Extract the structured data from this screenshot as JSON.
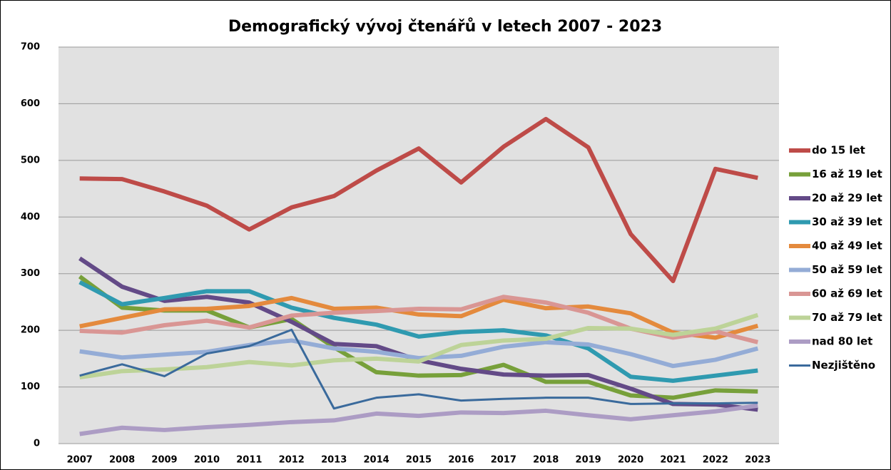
{
  "chart_data": {
    "type": "line",
    "title": "Demografický vývoj čtenářů v letech 2007 - 2023",
    "categories": [
      "2007",
      "2008",
      "2009",
      "2010",
      "2011",
      "2012",
      "2013",
      "2014",
      "2015",
      "2016",
      "2017",
      "2018",
      "2019",
      "2020",
      "2021",
      "2022",
      "2023"
    ],
    "ylim": [
      0,
      700
    ],
    "yticks": [
      0,
      100,
      200,
      300,
      400,
      500,
      600,
      700
    ],
    "grid": true,
    "legend": "right",
    "series": [
      {
        "name": "do 15 let",
        "color": "#be4b48",
        "values": [
          468,
          467,
          445,
          420,
          378,
          417,
          437,
          482,
          521,
          461,
          524,
          573,
          523,
          370,
          287,
          485,
          469
        ]
      },
      {
        "name": "16 až 19 let",
        "color": "#77a03a",
        "values": [
          295,
          240,
          235,
          235,
          205,
          220,
          170,
          126,
          120,
          121,
          139,
          109,
          109,
          85,
          81,
          94,
          92
        ]
      },
      {
        "name": "20 až 29 let",
        "color": "#634a87",
        "values": [
          327,
          277,
          252,
          259,
          249,
          215,
          176,
          172,
          147,
          132,
          122,
          120,
          121,
          97,
          70,
          69,
          60
        ]
      },
      {
        "name": "30 až 39 let",
        "color": "#2f9ab0",
        "values": [
          285,
          246,
          257,
          269,
          269,
          240,
          222,
          210,
          189,
          197,
          200,
          191,
          168,
          118,
          111,
          120,
          129
        ]
      },
      {
        "name": "40 až 49 let",
        "color": "#e48a3d",
        "values": [
          207,
          222,
          237,
          238,
          243,
          257,
          238,
          240,
          228,
          225,
          254,
          239,
          242,
          230,
          196,
          187,
          208
        ]
      },
      {
        "name": "50 až 59 let",
        "color": "#94acd6",
        "values": [
          163,
          152,
          157,
          162,
          174,
          182,
          168,
          162,
          151,
          155,
          171,
          179,
          175,
          158,
          137,
          148,
          168
        ]
      },
      {
        "name": "60 až 69 let",
        "color": "#d99694",
        "values": [
          199,
          196,
          209,
          217,
          205,
          226,
          231,
          234,
          238,
          237,
          259,
          249,
          231,
          203,
          187,
          198,
          179
        ]
      },
      {
        "name": "70 až 79 let",
        "color": "#bdd398",
        "values": [
          117,
          128,
          131,
          135,
          144,
          138,
          147,
          150,
          145,
          174,
          182,
          185,
          204,
          203,
          192,
          203,
          227
        ]
      },
      {
        "name": "nad 80 let",
        "color": "#ac9cc4",
        "values": [
          17,
          28,
          24,
          29,
          33,
          38,
          41,
          53,
          49,
          55,
          54,
          58,
          50,
          43,
          50,
          57,
          67
        ]
      },
      {
        "name": "Nezjištěno",
        "color": "#3a6a9c",
        "values": [
          120,
          140,
          119,
          159,
          172,
          201,
          62,
          81,
          87,
          76,
          79,
          81,
          81,
          70,
          71,
          71,
          72
        ]
      }
    ]
  }
}
